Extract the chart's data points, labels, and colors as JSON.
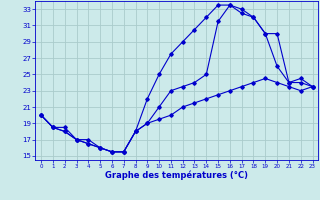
{
  "title": "Graphe des températures (°C)",
  "bg_color": "#cceaea",
  "grid_color": "#aacccc",
  "line_color": "#0000cc",
  "xlim": [
    -0.5,
    23.5
  ],
  "ylim": [
    14.5,
    34
  ],
  "xticks": [
    0,
    1,
    2,
    3,
    4,
    5,
    6,
    7,
    8,
    9,
    10,
    11,
    12,
    13,
    14,
    15,
    16,
    17,
    18,
    19,
    20,
    21,
    22,
    23
  ],
  "yticks": [
    15,
    17,
    19,
    21,
    23,
    25,
    27,
    29,
    31,
    33
  ],
  "curve1_x": [
    0,
    1,
    2,
    3,
    4,
    5,
    6,
    7,
    8,
    9,
    10,
    11,
    12,
    13,
    14,
    15,
    16,
    17,
    18,
    19,
    20,
    21,
    22,
    23
  ],
  "curve1_y": [
    20,
    18.5,
    18.5,
    17,
    16.5,
    16,
    15.5,
    15.5,
    18,
    22,
    25,
    27.5,
    29,
    30.5,
    32,
    33.5,
    33.5,
    32.5,
    32,
    30,
    26,
    24,
    24,
    23.5
  ],
  "curve2_x": [
    0,
    1,
    2,
    3,
    4,
    5,
    6,
    7,
    8,
    9,
    10,
    11,
    12,
    13,
    14,
    15,
    16,
    17,
    18,
    19,
    20,
    21,
    22,
    23
  ],
  "curve2_y": [
    20,
    18.5,
    18,
    17,
    16.5,
    16,
    15.5,
    15.5,
    18,
    19,
    21,
    23,
    23.5,
    24,
    25,
    31.5,
    33.5,
    33,
    32,
    30,
    30,
    24,
    24.5,
    23.5
  ],
  "curve3_x": [
    0,
    1,
    2,
    3,
    4,
    5,
    6,
    7,
    8,
    9,
    10,
    11,
    12,
    13,
    14,
    15,
    16,
    17,
    18,
    19,
    20,
    21,
    22,
    23
  ],
  "curve3_y": [
    20,
    18.5,
    18,
    17,
    17,
    16,
    15.5,
    15.5,
    18,
    19,
    19.5,
    20,
    21,
    21.5,
    22,
    22.5,
    23,
    23.5,
    24,
    24.5,
    24,
    23.5,
    23,
    23.5
  ]
}
